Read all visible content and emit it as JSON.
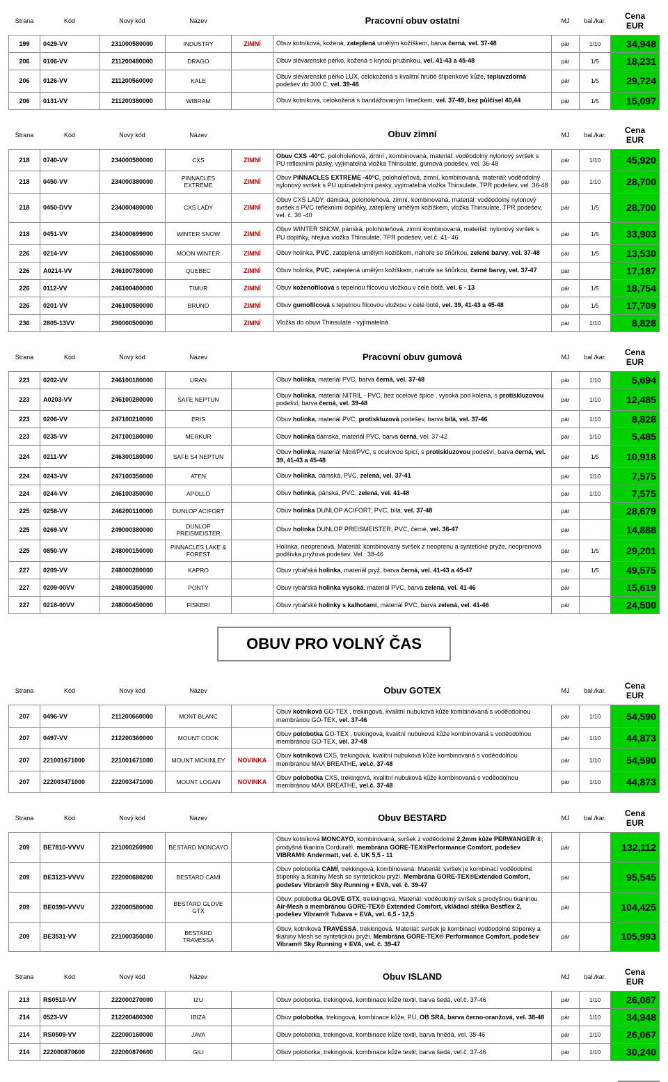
{
  "columns": {
    "strana": "Strana",
    "kod": "Kód",
    "novykod": "Nový kód",
    "nazev": "Název",
    "mj": "MJ",
    "bal": "bal./kar.",
    "cena": "Cena EUR"
  },
  "colors": {
    "price_bg": "#00d000",
    "price_fg": "#000000",
    "tag_zimni": "#c00000",
    "tag_novinka": "#c00000",
    "border": "#888888"
  },
  "big_title": "OBUV PRO VOLNÝ ČAS",
  "sections": [
    {
      "title": "Pracovní obuv ostatní",
      "rows": [
        {
          "strana": "199",
          "kod": "0429-VV",
          "novykod": "231000580000",
          "nazev": "INDUSTRY",
          "tag": "ZIMNÍ",
          "desc": "Obuv kotníková, kožená, <b>zateplená</b> umělým kožíškem, barva <b>černá, vel. 37-48</b>",
          "mj": "pár",
          "bal": "1/10",
          "price": "34,948"
        },
        {
          "strana": "206",
          "kod": "0106-VV",
          "novykod": "211200480000",
          "nazev": "DRAGO",
          "tag": "",
          "desc": "Obuv slévarenské pérko, kožená s krytou pružinkou, <b>vel. 41-43 a 45-48</b>",
          "mj": "pár",
          "bal": "1/5",
          "price": "18,231"
        },
        {
          "strana": "206",
          "kod": "0126-VV",
          "novykod": "211200560000",
          "nazev": "KALE",
          "tag": "",
          "desc": "Obuv slévarenské pérko LUX, celokožená s kvalitní hrubé štípenkové kůže, <b>tepluvzdorná</b> podešev do 300 C, <b>vel. 39-48</b>",
          "mj": "pár",
          "bal": "1/5",
          "price": "29,724"
        },
        {
          "strana": "206",
          "kod": "0131-VV",
          "novykod": "211200380000",
          "nazev": "WIBRAM",
          "tag": "",
          "desc": "Obuv kotníková, celokožená s bandážovaným límečkem, <b>vel. 37-49, bez půlčísel 40,44</b>",
          "mj": "pár",
          "bal": "1/5",
          "price": "15,097"
        }
      ]
    },
    {
      "title": "Obuv zimní",
      "rows": [
        {
          "strana": "218",
          "kod": "0740-VV",
          "novykod": "234000580000",
          "nazev": "CXS",
          "tag": "ZIMNÍ",
          "desc": "<b>Obuv CXS -40°C</b>, poloholeňová, zimní , kombinovaná, materiál: voděodolný nylonový svršek s PU reflexními pásky, vyjímatelná vložka Thinsulate, gumová podešev, vel. 36-48",
          "mj": "pár",
          "bal": "1/10",
          "price": "45,920"
        },
        {
          "strana": "218",
          "kod": "0450-VV",
          "novykod": "234000380000",
          "nazev": "PINNACLES EXTREME",
          "tag": "ZIMNÍ",
          "desc": "Obuv <b>PINNACLES EXTREME -40°C</b>, poloholeňová, zimní, kombinovaná, materiál: voděodolný nylonový svršek s PU upínatelnými pásky, vyjímatelná vložka Thinsulate, TPR podešev, vel. 36-48",
          "mj": "pár",
          "bal": "1/10",
          "price": "28,700"
        },
        {
          "strana": "218",
          "kod": "0450-DVV",
          "novykod": "234000480000",
          "nazev": "CXS LADY",
          "tag": "ZIMNÍ",
          "desc": "Obuv CXS LADY, dámská, poloholeňová, zimní, kombinovaná, materiál: voděodolný nylonový svršek s PVC reflexními doplňky, zateplený umělým kožíškem, vložka Thinsulate, TPR podešev, vel. č. 36 -40",
          "mj": "pár",
          "bal": "1/5",
          "price": "28,700"
        },
        {
          "strana": "218",
          "kod": "0451-VV",
          "novykod": "234000699900",
          "nazev": "WINTER SNOW",
          "tag": "ZIMNÍ",
          "desc": "Obuv WINTER SNOW, pánská, poloholeňová, zimní kombinovaná, materiál: nylonový svršek s PU doplňky, hřejivá vložka Thinsulate, TPR podešev, vel.č. 41- 46",
          "mj": "pár",
          "bal": "1/5",
          "price": "33,903"
        },
        {
          "strana": "226",
          "kod": "0214-VV",
          "novykod": "246100650000",
          "nazev": "MOON WINTER",
          "tag": "ZIMNÍ",
          "desc": "Obuv holinka, <b>PVC</b>, zateplená umělým kožíškem, nahoře se šňůrkou, <b>zelené barvy</b>, <b>vel. 37-48</b>",
          "mj": "pár",
          "bal": "1/5",
          "price": "13,530"
        },
        {
          "strana": "226",
          "kod": "A0214-VV",
          "novykod": "246100780000",
          "nazev": "QUEBEC",
          "tag": "ZIMNÍ",
          "desc": "Obuv holinka, <b>PVC</b>, zateplená umělým kožíškem, nahoře se šňůrkou, <b>černé barvy, vel. 37-47</b>",
          "mj": "pár",
          "bal": "",
          "price": "17,187"
        },
        {
          "strana": "226",
          "kod": "0112-VV",
          "novykod": "246100480000",
          "nazev": "TIMUR",
          "tag": "ZIMNÍ",
          "desc": "Obuv <b>koženofilcová</b> s tepelnou filcovou vložkou v celé botě, <b>vel. 6 - 13</b>",
          "mj": "pár",
          "bal": "1/5",
          "price": "18,754"
        },
        {
          "strana": "226",
          "kod": "0201-VV",
          "novykod": "246100580000",
          "nazev": "BRUNO",
          "tag": "ZIMNÍ",
          "desc": "Obuv <b>gumofilcová</b> s tepelnou filcovou vložkou v celé botě, <b>vel. 39, 41-43 a 45-48</b>",
          "mj": "pár",
          "bal": "1/5",
          "price": "17,709"
        },
        {
          "strana": "236",
          "kod": "2805-13VV",
          "novykod": "290000500000",
          "nazev": "",
          "tag": "ZIMNÍ",
          "desc": "Vložka do obuvi Thinsulate - vyjímatelná",
          "mj": "par",
          "bal": "1/10",
          "price": "8,828"
        }
      ]
    },
    {
      "title": "Pracovní obuv gumová",
      "rows": [
        {
          "strana": "223",
          "kod": "0202-VV",
          "novykod": "246100180000",
          "nazev": "URAN",
          "tag": "",
          "desc": "Obuv <b>holinka</b>, materiál PVC, barva <b>černá, vel. 37-48</b>",
          "mj": "pár",
          "bal": "1/10",
          "price": "5,694"
        },
        {
          "strana": "223",
          "kod": "A0203-VV",
          "novykod": "246100280000",
          "nazev": "SAFE NEPTUN",
          "tag": "",
          "desc": "Obuv <b>holinka</b>, materiál NITRIL - PVC, bez ocelové špice , vysoká pod kolena, s <b>protiskluzovou</b> podešví, barva <b>černá, vel. 39-48</b>",
          "mj": "pár",
          "bal": "1/10",
          "price": "12,485"
        },
        {
          "strana": "223",
          "kod": "0206-VV",
          "novykod": "247100210000",
          "nazev": "ERIS",
          "tag": "",
          "desc": "Obuv <b>holinka</b>, materiál PVC, <b>protiskluzová</b> podešev, barva <b>bílá, vel. 37-46</b>",
          "mj": "pár",
          "bal": "1/10",
          "price": "8,828"
        },
        {
          "strana": "223",
          "kod": "0235-VV",
          "novykod": "247100180000",
          "nazev": "MERKUR",
          "tag": "",
          "desc": "Obuv <b>holinka</b> dámská, materiál PVC, barva <b>černá</b>, vel. 37-42",
          "mj": "pár",
          "bal": "1/10",
          "price": "5,485"
        },
        {
          "strana": "224",
          "kod": "0211-VV",
          "novykod": "246300180000",
          "nazev": "SAFE S4 NEPTUN",
          "tag": "",
          "desc": "Obuv <b>holinka</b>, materiál Nitril/PVC, s ocelovou špicí, s <b>protiskluzovou</b> podešví, barva <b>černá, vel. 39, 41-43 a 45-48</b>",
          "mj": "pár",
          "bal": "1/5",
          "price": "10,918"
        },
        {
          "strana": "224",
          "kod": "0243-VV",
          "novykod": "247100350000",
          "nazev": "ATEN",
          "tag": "",
          "desc": "Obuv <b>holinka</b>, dámská, PVC, <b>zelená, vel. 37-41</b>",
          "mj": "pár",
          "bal": "1/10",
          "price": "7,575"
        },
        {
          "strana": "224",
          "kod": "0244-VV",
          "novykod": "246100350000",
          "nazev": "APOLLO",
          "tag": "",
          "desc": "Obuv <b>holinka</b>, pánská, PVC, <b>zelená, vel. 41-48</b>",
          "mj": "pár",
          "bal": "1/10",
          "price": "7,575"
        },
        {
          "strana": "225",
          "kod": "0258-VV",
          "novykod": "246200110000",
          "nazev": "DUNLOP ACIFORT",
          "tag": "",
          "desc": "Obuv <b>holinka</b> DUNLOP ACIFORT, PVC, bílá, <b>vel. 37-48</b>",
          "mj": "pár",
          "bal": "",
          "price": "28,679"
        },
        {
          "strana": "225",
          "kod": "0269-VV",
          "novykod": "249000380000",
          "nazev": "DUNLOP PREISMEISTER",
          "tag": "",
          "desc": "Obuv <b>holinka</b> DUNLOP PREISMEISTER, PVC, černé, <b>vel. 36-47</b>",
          "mj": "pár",
          "bal": "",
          "price": "14,888"
        },
        {
          "strana": "225",
          "kod": "0850-VV",
          "novykod": "248000150000",
          "nazev": "PINNACLES LAKE & FOREST",
          "tag": "",
          "desc": "Holínka, neoprenová. Materiál: kombinovaný svršek z neoprenu a syntetické pryže, neoprenová podšívka,pryžová podešev. Vel.: 38-46",
          "mj": "pár",
          "bal": "1/5",
          "price": "29,201"
        },
        {
          "strana": "227",
          "kod": "0209-VV",
          "novykod": "248000280000",
          "nazev": "KAPRO",
          "tag": "",
          "desc": "Obuv rybářská <b>holinka</b>, materiál pryž, barva <b>černá, vel. 41-43 a 45-47</b>",
          "mj": "pár",
          "bal": "1/5",
          "price": "49,575"
        },
        {
          "strana": "227",
          "kod": "0209-00VV",
          "novykod": "248000350000",
          "nazev": "PONTY",
          "tag": "",
          "desc": "Obuv rybářská <b>holinka vysoká</b>, materiál PVC, barva <b>zelená, vel. 41-46</b>",
          "mj": "pár",
          "bal": "",
          "price": "15,619"
        },
        {
          "strana": "227",
          "kod": "0218-00VV",
          "novykod": "248000450000",
          "nazev": "FISKERI",
          "tag": "",
          "desc": "Obuv rybářské <b>holinky s kalhotami</b>, materiál PVC, barva <b>zelená, vel. 41-46</b>",
          "mj": "pár",
          "bal": "",
          "price": "24,500"
        }
      ]
    },
    {
      "big_title_before": true,
      "title": "Obuv GOTEX",
      "rows": [
        {
          "strana": "207",
          "kod": "0496-VV",
          "novykod": "211200660000",
          "nazev": "MONT BLANC",
          "tag": "",
          "desc": "Obuv <b>kotníková</b> GO-TEX , trekingová, kvalitní nubuková kůže kombinovaná s voděodolnou membránou GO-TEX, <b>vel. 37-46</b>",
          "mj": "pár",
          "bal": "1/10",
          "price": "54,590"
        },
        {
          "strana": "207",
          "kod": "0497-VV",
          "novykod": "212200360000",
          "nazev": "MOUNT COOK",
          "tag": "",
          "desc": "Obuv <b>polobotka</b> GO-TEX , trekingová, kvalitní nubuková kůže kombinovaná s voděodolnou membránou GO-TEX, <b>vel. 37-48</b>",
          "mj": "pár",
          "bal": "1/10",
          "price": "44,873"
        },
        {
          "strana": "207",
          "kod": "221001671000",
          "novykod": "221001671000",
          "nazev": "MOUNT MCKINLEY",
          "tag": "NOVINKA",
          "desc": "Obuv <b>kotníková</b> CXS, trekingová, kvalitní nubuková kůže kombinovaná s voděodolnou membránou MAX BREATHE, <b>vel.č. 37-48</b>",
          "mj": "pár",
          "bal": "1/10",
          "price": "54,590"
        },
        {
          "strana": "207",
          "kod": "222003471000",
          "novykod": "222003471000",
          "nazev": "MOUNT LOGAN",
          "tag": "NOVINKA",
          "desc": "Obuv <b>polobotka</b> CXS, trekingová, kvalitní nubuková kůže kombinovaná s voděodolnou membránou MAX BREATHE, <b>vel.č. 37-48</b>",
          "mj": "pár",
          "bal": "1/10",
          "price": "44,873"
        }
      ]
    },
    {
      "title": "Obuv BESTARD",
      "rows": [
        {
          "strana": "209",
          "kod": "BE7810-VVVV",
          "novykod": "221000260900",
          "nazev": "BESTARD MONCAYO",
          "tag": "",
          "desc": "Obuv kotníková <b>MONCAYO</b>, kombinovaná, svršek z voděodolné <b>2,2mm kůže PERWANGER ®</b>, prodyšná tkanina Cordura®, <b>membrána GORE-TEX®Performance Comfort</b>, <b>podešev VIBRAM® Andermatt, vel. č. UK 5,5 - 11</b>",
          "mj": "pár",
          "bal": "",
          "price": "132,112"
        },
        {
          "strana": "209",
          "kod": "BE3123-VVVV",
          "novykod": "222000680200",
          "nazev": "BESTARD CAMÍ",
          "tag": "",
          "desc": "Obuv polobotka <b>CAMÍ</b>, trekkingová, kombinovaná. Materiál: svršek je kombinací voděodolné štípenky a tkaniny Mesh se syntetickou pryží. <b>Membrána GORE-TEX®Extended Comfort, podešev Vibram® Sky Running + EVA, vel. č. 39-47</b>",
          "mj": "pár",
          "bal": "",
          "price": "95,545"
        },
        {
          "strana": "209",
          "kod": "BE0390-VVVV",
          "novykod": "222000580000",
          "nazev": "BESTARD GLOVE GTX",
          "tag": "",
          "desc": "Obuv, polobotka <b>GLOVE GTX</b>, trekkingová. Materiál: voděodolný svršek s prodyšnou tkaninou <b>Air-Mesh a membránou GORE-TEX® Extended Comfort, vkládací stélka Bestflex 2, podešev Vibram® Tubava + EVA, vel. 6,5 - 12,5</b>",
          "mj": "pár",
          "bal": "",
          "price": "104,425"
        },
        {
          "strana": "209",
          "kod": "BE3531-VV",
          "novykod": "221000350000",
          "nazev": "BESTARD TRAVESSA",
          "tag": "",
          "desc": "Obuv, kotníková <b>TRAVESSA</b>, trekkingová. Materiál: svršek je kombinací voděodolné štípenky a tkaniny Mesh se syntetickou pryží. <b>Membrána GORE-TEX® Performance Comfort, podešev Vibram® Sky Running + EVA, vel. č. 39-47</b>",
          "mj": "pár",
          "bal": "",
          "price": "105,993"
        }
      ]
    },
    {
      "title": "Obuv ISLAND",
      "rows": [
        {
          "strana": "213",
          "kod": "RS0510-VV",
          "novykod": "222000270000",
          "nazev": "IZU",
          "tag": "",
          "desc": "Obuv polobotka, trekingová, kombinace kůže textil, barva šedá, vel.č. 37-46",
          "mj": "pár",
          "bal": "1/10",
          "price": "26,067"
        },
        {
          "strana": "214",
          "kod": "0523-VV",
          "novykod": "212200480300",
          "nazev": "IBIZA",
          "tag": "",
          "desc": "Obuv <b>polobotka</b>, trekingová, kombinace kůže, PU, <b>OB SRA, barva černo-oranžová, vel. 38-48</b>",
          "mj": "pár",
          "bal": "1/10",
          "price": "34,948"
        },
        {
          "strana": "214",
          "kod": "RS0509-VV",
          "novykod": "222000160000",
          "nazev": "JAVA",
          "tag": "",
          "desc": "Obuv polobotka, trekingová, kombinace kůže textil, barva hnědá, vel. 38-46",
          "mj": "pár",
          "bal": "1/10",
          "price": "26,067"
        },
        {
          "strana": "214",
          "kod": "222000870600",
          "novykod": "222000870600",
          "nazev": "GILI",
          "tag": "",
          "desc": "Obuv polobotka, trekingová, kombinace kůže textil, barva šedá, vel.č. 37-46",
          "mj": "pár",
          "bal": "1/10",
          "price": "30,240"
        }
      ]
    }
  ]
}
